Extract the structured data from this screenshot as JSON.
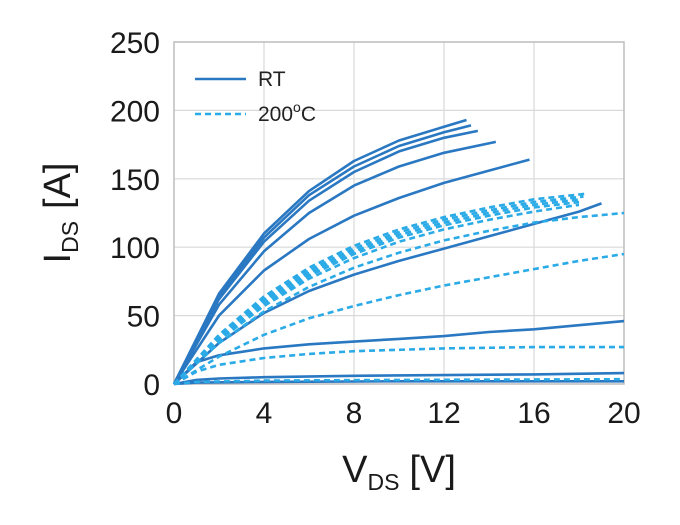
{
  "colors": {
    "rt": "#2a78c2",
    "hot": "#2aaae6",
    "grid": "#d9d9d9",
    "frame": "#bfbfbf"
  },
  "chart_data": {
    "type": "line",
    "xlabel": {
      "main": "V",
      "sub": "DS",
      "unit": "[V]"
    },
    "ylabel": {
      "main": "I",
      "sub": "DS",
      "unit": "[A]"
    },
    "xlim": [
      0,
      20
    ],
    "ylim": [
      0,
      250
    ],
    "xticks": [
      "0",
      "4",
      "8",
      "12",
      "16",
      "20"
    ],
    "yticks": [
      "0",
      "50",
      "100",
      "150",
      "200",
      "250"
    ],
    "grid": true,
    "legend": {
      "position": "top-left",
      "entries": [
        {
          "label": "RT",
          "style": "solid"
        },
        {
          "label": "200",
          "sup": "o",
          "tail": "C",
          "style": "dashed"
        }
      ]
    },
    "series": [
      {
        "group": "RT",
        "style": "solid",
        "x": [
          0,
          2,
          4,
          6,
          8,
          10,
          12,
          13
        ],
        "y": [
          0,
          66,
          110,
          141,
          163,
          178,
          188,
          193
        ]
      },
      {
        "group": "RT",
        "style": "solid",
        "x": [
          0,
          2,
          4,
          6,
          8,
          10,
          12,
          13.2
        ],
        "y": [
          0,
          64,
          107,
          138,
          159,
          174,
          184,
          189
        ]
      },
      {
        "group": "RT",
        "style": "solid",
        "x": [
          0,
          2,
          4,
          6,
          8,
          10,
          12,
          13.5
        ],
        "y": [
          0,
          62,
          104,
          134,
          155,
          170,
          180,
          185
        ]
      },
      {
        "group": "RT",
        "style": "solid",
        "x": [
          0,
          2,
          4,
          6,
          8,
          10,
          12,
          14.3
        ],
        "y": [
          0,
          58,
          97,
          125,
          145,
          159,
          169,
          177
        ]
      },
      {
        "group": "RT",
        "style": "solid",
        "x": [
          0,
          2,
          4,
          6,
          8,
          10,
          12,
          14,
          15.8
        ],
        "y": [
          0,
          50,
          83,
          106,
          123,
          136,
          147,
          156,
          164
        ]
      },
      {
        "group": "RT",
        "style": "solid",
        "x": [
          0,
          2,
          4,
          6,
          8,
          10,
          12,
          14,
          16,
          18,
          19
        ],
        "y": [
          0,
          30,
          52,
          68,
          80,
          90,
          99,
          108,
          117,
          126,
          132
        ]
      },
      {
        "group": "RT",
        "style": "solid",
        "x": [
          0,
          1,
          2,
          4,
          6,
          8,
          10,
          12,
          14,
          16,
          18,
          20
        ],
        "y": [
          0,
          16,
          21,
          26,
          29,
          31,
          33,
          35,
          38,
          40,
          43,
          46
        ]
      },
      {
        "group": "RT",
        "style": "solid",
        "x": [
          0,
          1,
          2,
          4,
          8,
          12,
          16,
          20
        ],
        "y": [
          0,
          3,
          4,
          5,
          6,
          6.5,
          7,
          8
        ]
      },
      {
        "group": "RT",
        "style": "solid",
        "x": [
          0,
          1,
          4,
          10,
          20
        ],
        "y": [
          0,
          1,
          1.5,
          2,
          2
        ]
      },
      {
        "group": "200C",
        "style": "dashed",
        "x": [
          0,
          2,
          4,
          6,
          8,
          10,
          12,
          14,
          16,
          18.3
        ],
        "y": [
          0,
          36,
          64,
          85,
          101,
          113,
          122,
          129,
          135,
          139
        ]
      },
      {
        "group": "200C",
        "style": "dashed",
        "x": [
          0,
          2,
          4,
          6,
          8,
          10,
          12,
          14,
          16,
          18.2
        ],
        "y": [
          0,
          35,
          62,
          83,
          99,
          111,
          120,
          127,
          133,
          137
        ]
      },
      {
        "group": "200C",
        "style": "dashed",
        "x": [
          0,
          2,
          4,
          6,
          8,
          10,
          12,
          14,
          16,
          18.1
        ],
        "y": [
          0,
          34,
          61,
          81,
          97,
          109,
          118,
          125,
          131,
          135
        ]
      },
      {
        "group": "200C",
        "style": "dashed",
        "x": [
          0,
          2,
          4,
          6,
          8,
          10,
          12,
          14,
          16,
          18
        ],
        "y": [
          0,
          33,
          59,
          79,
          95,
          107,
          116,
          123,
          129,
          133
        ]
      },
      {
        "group": "200C",
        "style": "dashed",
        "x": [
          0,
          2,
          4,
          6,
          8,
          10,
          12,
          14,
          16,
          18
        ],
        "y": [
          0,
          32,
          57,
          77,
          92,
          104,
          113,
          120,
          126,
          131
        ]
      },
      {
        "group": "200C",
        "style": "dashed",
        "x": [
          0,
          2,
          4,
          6,
          8,
          10,
          12,
          14,
          16,
          18,
          20
        ],
        "y": [
          0,
          30,
          53,
          71,
          85,
          96,
          105,
          112,
          118,
          122,
          125
        ]
      },
      {
        "group": "200C",
        "style": "dashed",
        "x": [
          0,
          2,
          4,
          6,
          8,
          10,
          12,
          14,
          16,
          18,
          20
        ],
        "y": [
          0,
          20,
          36,
          48,
          57,
          65,
          72,
          78,
          84,
          90,
          95
        ]
      },
      {
        "group": "200C",
        "style": "dashed",
        "x": [
          0,
          1,
          2,
          4,
          6,
          8,
          10,
          12,
          16,
          20
        ],
        "y": [
          0,
          9,
          14,
          19,
          22,
          24,
          25,
          26,
          27,
          27
        ]
      },
      {
        "group": "200C",
        "style": "dashed",
        "x": [
          0,
          1,
          4,
          10,
          20
        ],
        "y": [
          0,
          1.5,
          2.5,
          3,
          3.5
        ]
      }
    ]
  }
}
